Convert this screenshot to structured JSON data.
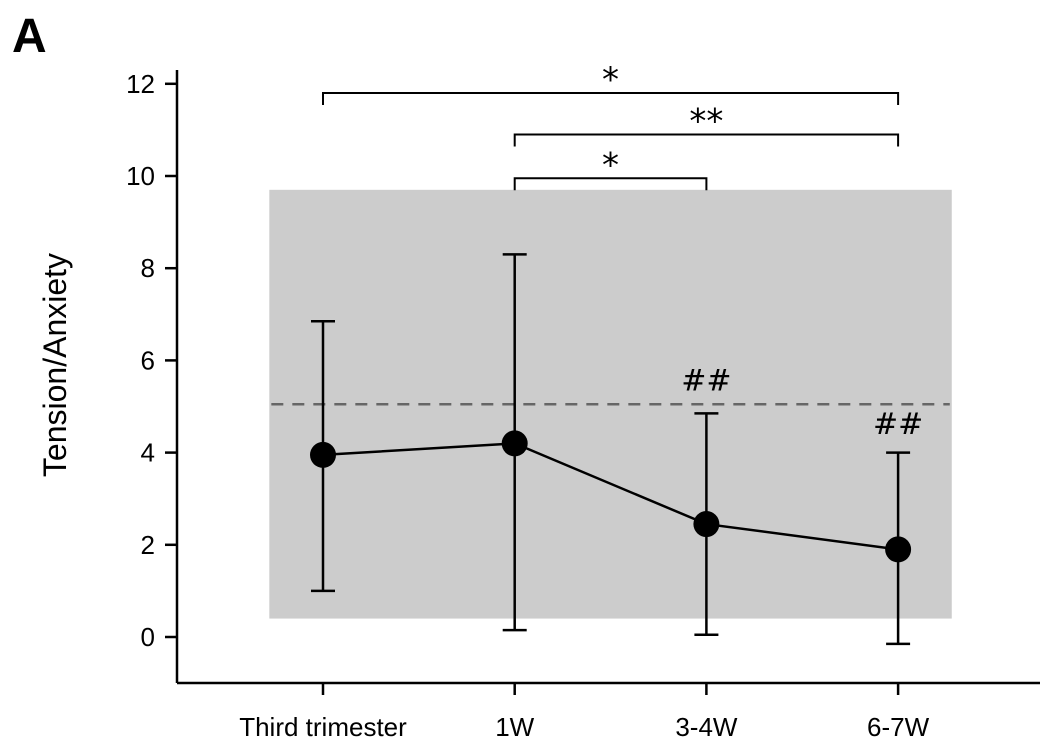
{
  "panel_label": "A",
  "chart_data": {
    "type": "line",
    "ylabel": "Tension/Anxiety",
    "xlabel": "",
    "categories": [
      "Third trimester",
      "1W",
      "3-4W",
      "6-7W"
    ],
    "series": [
      {
        "values": [
          3.95,
          4.2,
          2.45,
          1.9
        ],
        "error_upper": [
          6.85,
          8.3,
          4.85,
          4.0
        ],
        "error_lower": [
          1.0,
          0.15,
          0.05,
          -0.15
        ]
      }
    ],
    "ylim": [
      -1,
      12
    ],
    "yticks": [
      0,
      2,
      4,
      6,
      8,
      10,
      12
    ],
    "shaded_band": {
      "y_from": 0.4,
      "y_to": 9.7,
      "x_from": -0.28,
      "x_to": 3.28
    },
    "reference_line": {
      "y": 5.05,
      "style": "dashed"
    },
    "significance_brackets": [
      {
        "from": "Third trimester",
        "to": "6-7W",
        "y": 11.8,
        "label": "*"
      },
      {
        "from": "1W",
        "to": "6-7W",
        "y": 10.9,
        "label": "**"
      },
      {
        "from": "1W",
        "to": "3-4W",
        "y": 9.95,
        "label": "*"
      }
    ],
    "point_annotations": [
      {
        "category": "3-4W",
        "y": 5.35,
        "label": "##"
      },
      {
        "category": "6-7W",
        "y": 4.4,
        "label": "##"
      }
    ],
    "colors": {
      "band": "#cccccc",
      "line": "#000000",
      "reference": "#666666"
    },
    "grid": false
  }
}
